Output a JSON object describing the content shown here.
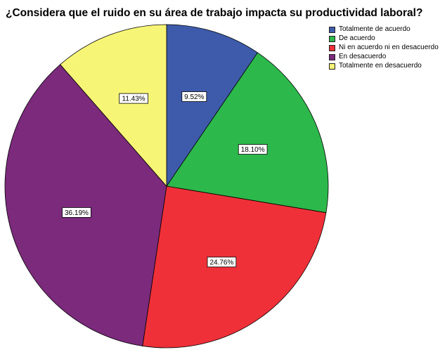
{
  "chart_data": {
    "type": "pie",
    "title": "¿Considera que el ruido en su área de trabajo impacta su productividad laboral?",
    "slices": [
      {
        "label": "Totalmente de acuerdo",
        "value": 9.52,
        "value_label": "9.52%",
        "color": "#3e5bab"
      },
      {
        "label": "De acuerdo",
        "value": 18.1,
        "value_label": "18.10%",
        "color": "#2db84b"
      },
      {
        "label": "Ni en acuerdo ni en desacuerdo",
        "value": 24.76,
        "value_label": "24.76%",
        "color": "#ef3038"
      },
      {
        "label": "En desacuerdo",
        "value": 36.19,
        "value_label": "36.19%",
        "color": "#7b2a7c"
      },
      {
        "label": "Totalmente en desacuerdo",
        "value": 11.43,
        "value_label": "11.43%",
        "color": "#f7f576"
      }
    ],
    "start_angle": "12 o'clock",
    "direction": "clockwise",
    "legend_position": "top-right"
  }
}
